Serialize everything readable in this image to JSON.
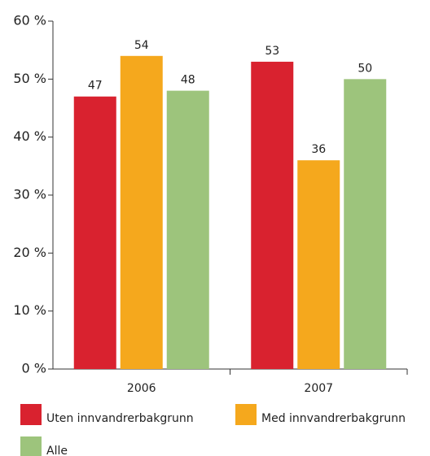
{
  "chart_data": {
    "type": "bar",
    "categories": [
      "2006",
      "2007"
    ],
    "series": [
      {
        "name": "Uten innvandrerbakgrunn",
        "color": "#d9222f",
        "values": [
          47,
          53
        ]
      },
      {
        "name": "Med innvandrerbakgrunn",
        "color": "#f5a81d",
        "values": [
          54,
          36
        ]
      },
      {
        "name": "Alle",
        "color": "#9dc47c",
        "values": [
          48,
          50
        ]
      }
    ],
    "ylim": [
      0,
      60
    ],
    "yticks": [
      {
        "value": 0,
        "label": "0 %"
      },
      {
        "value": 10,
        "label": "10 %"
      },
      {
        "value": 20,
        "label": "20 %"
      },
      {
        "value": 30,
        "label": "30 %"
      },
      {
        "value": 40,
        "label": "40 %"
      },
      {
        "value": 50,
        "label": "50 %"
      },
      {
        "value": 60,
        "label": "60 %"
      }
    ],
    "grid": false
  }
}
